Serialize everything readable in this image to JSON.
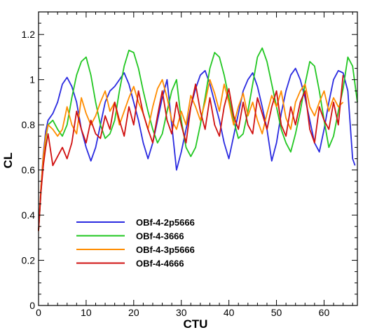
{
  "chart_data": {
    "type": "line",
    "title": "",
    "xlabel": "CTU",
    "ylabel": "CL",
    "xlim": [
      0,
      67
    ],
    "ylim": [
      0,
      1.3
    ],
    "xticks": [
      0,
      10,
      20,
      30,
      40,
      50,
      60
    ],
    "yticks": [
      0,
      0.2,
      0.4,
      0.6,
      0.8,
      1,
      1.2
    ],
    "xtick_labels": [
      "0",
      "10",
      "20",
      "30",
      "40",
      "50",
      "60"
    ],
    "ytick_labels": [
      "0",
      "0.2",
      "0.4",
      "0.6",
      "0.8",
      "1",
      "1.2"
    ],
    "grid": false,
    "legend_position": "lower-left",
    "series": [
      {
        "name": "OBf-4-2p5666",
        "color": "#2a2ae0",
        "x": [
          0,
          0.5,
          1,
          1.5,
          2,
          3,
          4,
          5,
          6,
          7,
          8,
          9,
          10,
          11,
          12,
          13,
          14,
          15,
          16,
          17,
          18,
          19,
          20,
          21,
          22,
          23,
          24,
          25,
          26,
          27,
          28,
          29,
          30,
          31,
          32,
          33,
          34,
          35,
          36,
          37,
          38,
          39,
          40,
          41,
          42,
          43,
          44,
          45,
          46,
          47,
          48,
          49,
          50,
          51,
          52,
          53,
          54,
          55,
          56,
          57,
          58,
          59,
          60,
          61,
          62,
          63,
          64,
          65,
          66,
          66.5
        ],
        "y": [
          0.33,
          0.52,
          0.67,
          0.77,
          0.82,
          0.85,
          0.9,
          0.98,
          1.01,
          0.97,
          0.9,
          0.78,
          0.7,
          0.64,
          0.7,
          0.8,
          0.9,
          0.95,
          0.97,
          1.0,
          1.03,
          0.98,
          0.9,
          0.82,
          0.72,
          0.65,
          0.72,
          0.82,
          0.92,
          1.0,
          0.8,
          0.6,
          0.68,
          0.78,
          0.88,
          0.96,
          1.02,
          1.04,
          0.98,
          0.9,
          0.82,
          0.72,
          0.65,
          0.75,
          0.85,
          0.95,
          1.0,
          1.03,
          0.97,
          0.88,
          0.78,
          0.64,
          0.72,
          0.85,
          0.95,
          1.02,
          1.05,
          1.0,
          0.92,
          0.82,
          0.72,
          0.68,
          0.78,
          0.9,
          1.0,
          1.04,
          1.03,
          0.95,
          0.65,
          0.62
        ]
      },
      {
        "name": "OBf-4-3666",
        "color": "#22c722",
        "x": [
          0,
          0.5,
          1,
          1.5,
          2,
          3,
          4,
          5,
          6,
          7,
          8,
          9,
          10,
          11,
          12,
          13,
          14,
          15,
          16,
          17,
          18,
          19,
          20,
          21,
          22,
          23,
          24,
          25,
          26,
          27,
          28,
          29,
          30,
          31,
          32,
          33,
          34,
          35,
          36,
          37,
          38,
          39,
          40,
          41,
          42,
          43,
          44,
          45,
          46,
          47,
          48,
          49,
          50,
          51,
          52,
          53,
          54,
          55,
          56,
          57,
          58,
          59,
          60,
          61,
          62,
          63,
          64,
          65,
          66,
          67
        ],
        "y": [
          0.33,
          0.5,
          0.65,
          0.74,
          0.8,
          0.82,
          0.78,
          0.75,
          0.8,
          0.92,
          1.02,
          1.08,
          1.1,
          1.02,
          0.9,
          0.8,
          0.74,
          0.76,
          0.82,
          0.95,
          1.06,
          1.13,
          1.12,
          1.05,
          0.95,
          0.86,
          0.78,
          0.72,
          0.76,
          0.86,
          0.95,
          1.0,
          0.82,
          0.7,
          0.66,
          0.7,
          0.8,
          0.92,
          1.05,
          1.12,
          1.1,
          1.02,
          0.92,
          0.82,
          0.74,
          0.76,
          0.86,
          0.98,
          1.1,
          1.14,
          1.08,
          0.98,
          0.88,
          0.78,
          0.72,
          0.68,
          0.76,
          0.86,
          0.98,
          1.08,
          1.06,
          0.95,
          0.82,
          0.7,
          0.75,
          0.86,
          0.96,
          1.1,
          1.06,
          0.9
        ]
      },
      {
        "name": "OBf-4-3p5666",
        "color": "#ff8c00",
        "x": [
          0,
          0.5,
          1,
          1.5,
          2,
          3,
          4,
          5,
          6,
          7,
          8,
          9,
          10,
          11,
          12,
          13,
          14,
          15,
          16,
          17,
          18,
          19,
          20,
          21,
          22,
          23,
          24,
          25,
          26,
          27,
          28,
          29,
          30,
          31,
          32,
          33,
          34,
          35,
          36,
          37,
          38,
          39,
          40,
          41,
          42,
          43,
          44,
          45,
          46,
          47,
          48,
          49,
          50,
          51,
          52,
          53,
          54,
          55,
          56,
          57,
          58,
          59,
          60,
          61,
          62,
          63,
          64
        ],
        "y": [
          0.33,
          0.52,
          0.66,
          0.75,
          0.8,
          0.78,
          0.75,
          0.78,
          0.88,
          0.8,
          0.76,
          0.92,
          0.85,
          0.8,
          0.84,
          0.9,
          0.95,
          0.86,
          0.9,
          0.8,
          0.86,
          0.92,
          0.97,
          0.9,
          0.85,
          0.78,
          0.88,
          0.96,
          1.0,
          0.92,
          0.82,
          0.78,
          0.86,
          0.8,
          0.93,
          0.88,
          0.82,
          0.9,
          1.0,
          0.94,
          0.86,
          0.98,
          0.9,
          0.8,
          0.88,
          0.94,
          0.84,
          0.9,
          0.82,
          0.76,
          0.85,
          0.93,
          0.88,
          0.95,
          0.83,
          0.78,
          0.9,
          0.95,
          0.98,
          0.88,
          0.84,
          0.9,
          0.95,
          0.86,
          0.92,
          0.88,
          0.9
        ]
      },
      {
        "name": "OBf-4-4666",
        "color": "#d01010",
        "x": [
          0,
          0.5,
          1,
          1.5,
          2,
          3,
          4,
          5,
          6,
          7,
          8,
          9,
          10,
          11,
          12,
          13,
          14,
          15,
          16,
          17,
          18,
          19,
          20,
          21,
          22,
          23,
          24,
          25,
          26,
          27,
          28,
          29,
          30,
          31,
          32,
          33,
          34,
          35,
          36,
          37,
          38,
          39,
          40,
          41,
          42,
          43,
          44,
          45,
          46,
          47,
          48,
          49,
          50,
          51,
          52,
          53,
          54,
          55,
          56,
          57,
          58,
          59,
          60,
          61,
          62,
          63,
          64
        ],
        "y": [
          0.33,
          0.5,
          0.62,
          0.7,
          0.76,
          0.62,
          0.66,
          0.7,
          0.65,
          0.72,
          0.86,
          0.78,
          0.72,
          0.82,
          0.76,
          0.74,
          0.84,
          0.78,
          0.9,
          0.82,
          0.75,
          0.88,
          0.8,
          0.95,
          0.85,
          0.78,
          0.72,
          0.84,
          0.95,
          0.82,
          0.76,
          0.9,
          0.8,
          0.72,
          0.88,
          0.98,
          0.86,
          0.78,
          0.92,
          0.8,
          0.75,
          0.88,
          0.96,
          0.84,
          0.78,
          0.9,
          0.8,
          0.76,
          0.92,
          0.85,
          0.78,
          0.88,
          0.95,
          0.8,
          0.75,
          0.88,
          0.8,
          0.9,
          0.95,
          0.78,
          0.72,
          0.88,
          0.82,
          0.78,
          0.9,
          0.8,
          1.02
        ]
      }
    ]
  }
}
